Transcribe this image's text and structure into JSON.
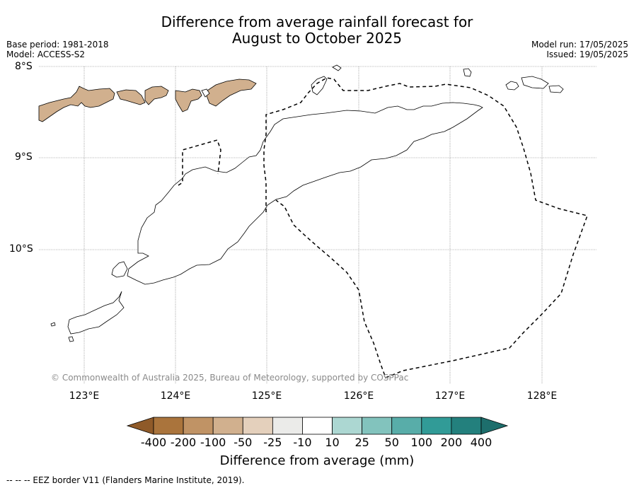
{
  "title": {
    "line1": "Difference from average rainfall forecast for",
    "line2": "August to October 2025"
  },
  "meta_left": {
    "base_period": "Base period: 1981-2018",
    "model": "Model: ACCESS-S2"
  },
  "meta_right": {
    "model_run": "Model run: 17/05/2025",
    "issued": "Issued: 19/05/2025"
  },
  "latitude_labels": [
    "8°S",
    "9°S",
    "10°S"
  ],
  "longitude_labels": [
    "123°E",
    "124°E",
    "125°E",
    "126°E",
    "127°E",
    "128°E"
  ],
  "copyright": "© Commonwealth of Australia 2025, Bureau of Meteorology, supported by COSPPac",
  "colorbar": {
    "label": "Difference from average (mm)",
    "ticks": [
      "-400",
      "-200",
      "-100",
      "-50",
      "-25",
      "-10",
      "10",
      "25",
      "50",
      "100",
      "200",
      "400"
    ],
    "colors": [
      "#aa743c",
      "#c09365",
      "#d1b08e",
      "#e4d0bc",
      "#ebebe9",
      "#ffffff",
      "#d5ebe8",
      "#acd7d2",
      "#82c3bd",
      "#58ada9",
      "#319b97",
      "#23807d"
    ],
    "low_extend_color": "#8f5a29",
    "high_extend_color": "#1d6e6c"
  },
  "footnote": "--  --  -- EEZ border V11 (Flanders Marine Institute, 2019)."
}
